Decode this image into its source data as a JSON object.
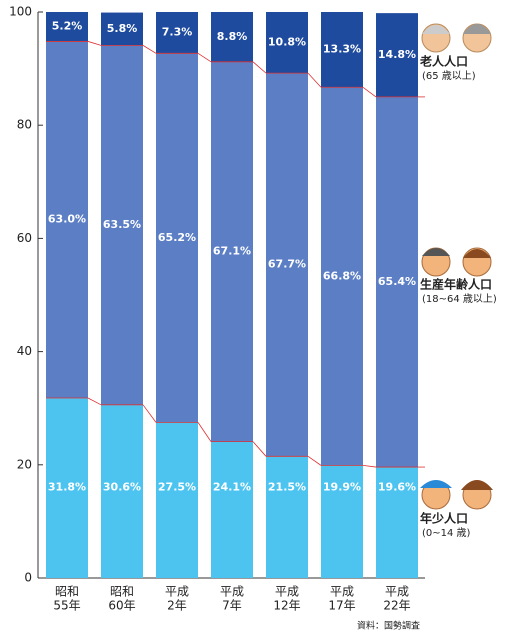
{
  "chart_data": {
    "type": "stacked-bar",
    "categories": [
      [
        "昭和",
        "55年"
      ],
      [
        "昭和",
        "60年"
      ],
      [
        "平成",
        "2年"
      ],
      [
        "平成",
        "7年"
      ],
      [
        "平成",
        "12年"
      ],
      [
        "平成",
        "17年"
      ],
      [
        "平成",
        "22年"
      ]
    ],
    "series": [
      {
        "name": "年少人口",
        "sublabel": "(0~14 歳)",
        "color": "#4dc4f0",
        "values": [
          31.8,
          30.6,
          27.5,
          24.1,
          21.5,
          19.9,
          19.6
        ],
        "value_labels": [
          "31.8%",
          "30.6%",
          "27.5%",
          "24.1%",
          "21.5%",
          "19.9%",
          "19.6%"
        ]
      },
      {
        "name": "生産年齢人口",
        "sublabel": "(18~64 歳以上)",
        "color": "#5b7ec4",
        "values": [
          63.0,
          63.5,
          65.2,
          67.1,
          67.7,
          66.8,
          65.4
        ],
        "value_labels": [
          "63.0%",
          "63.5%",
          "65.2%",
          "67.1%",
          "67.7%",
          "66.8%",
          "65.4%"
        ]
      },
      {
        "name": "老人人口",
        "sublabel": "(65 歳以上)",
        "color": "#1e4b9e",
        "values": [
          5.2,
          5.8,
          7.3,
          8.8,
          10.8,
          13.3,
          14.8
        ],
        "value_labels": [
          "5.2%",
          "5.8%",
          "7.3%",
          "8.8%",
          "10.8%",
          "13.3%",
          "14.8%"
        ]
      }
    ],
    "ylim": [
      0,
      100
    ],
    "yticks": [
      0,
      20,
      40,
      60,
      80,
      100
    ],
    "source": "資料：国勢調査"
  }
}
